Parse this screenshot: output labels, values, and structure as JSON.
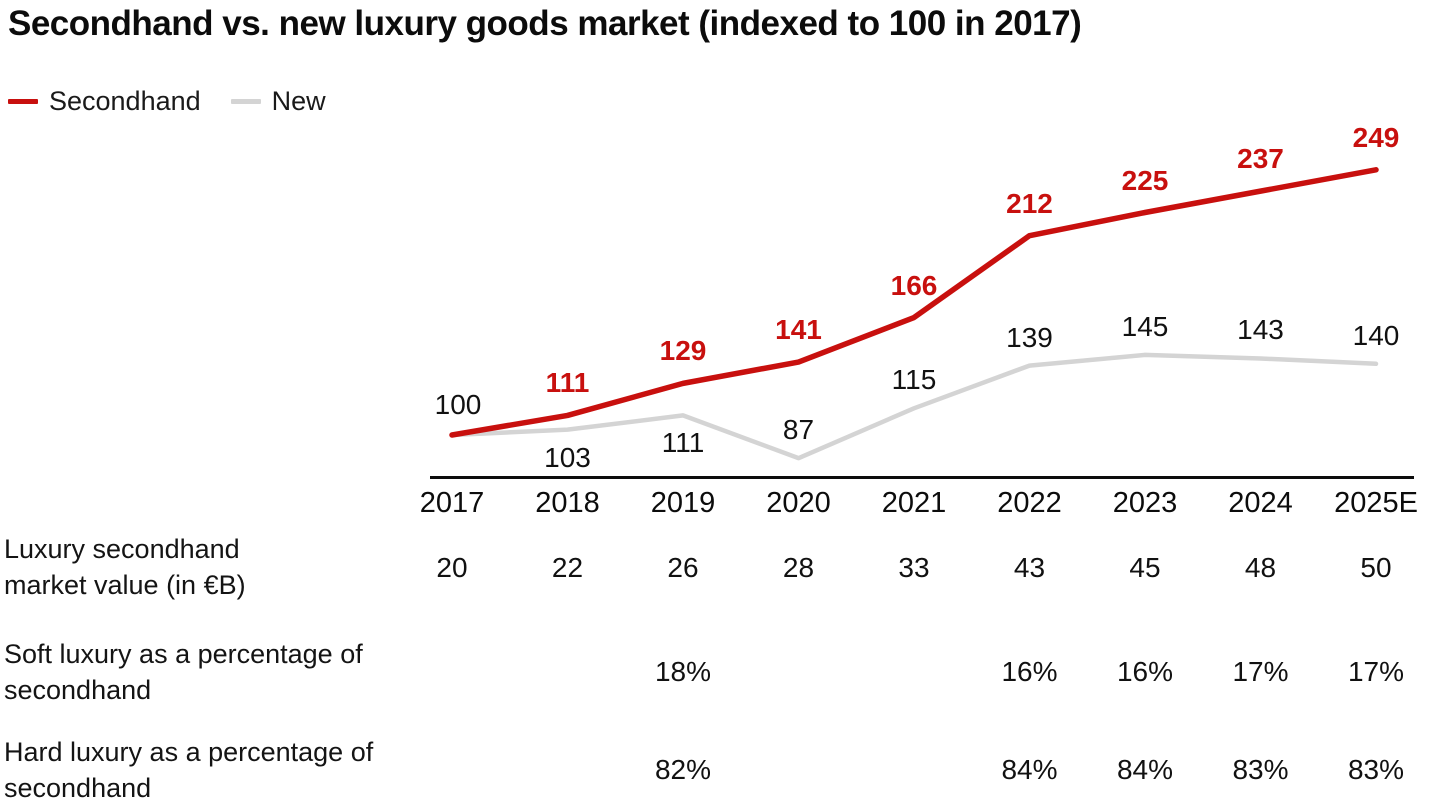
{
  "title": "Secondhand vs. new luxury goods market (indexed to 100 in 2017)",
  "legend": [
    {
      "label": "Secondhand",
      "color": "#c8100e"
    },
    {
      "label": "New",
      "color": "#d4d4d4"
    }
  ],
  "chart_data": {
    "type": "line",
    "title": "Secondhand vs. new luxury goods market (indexed to 100 in 2017)",
    "x": [
      "2017",
      "2018",
      "2019",
      "2020",
      "2021",
      "2022",
      "2023",
      "2024",
      "2025E"
    ],
    "series": [
      {
        "name": "Secondhand",
        "color": "#c8100e",
        "values": [
          100,
          111,
          129,
          141,
          166,
          212,
          225,
          237,
          249
        ]
      },
      {
        "name": "New",
        "color": "#d4d4d4",
        "values": [
          100,
          103,
          111,
          87,
          115,
          139,
          145,
          143,
          140
        ]
      }
    ],
    "xlabel": "",
    "ylabel": "",
    "ylim": [
      80,
      260
    ],
    "grid": false,
    "legend_position": "top-left",
    "index_base_note": "indexed to 100 in 2017"
  },
  "table": {
    "rows": [
      {
        "label": "Luxury secondhand market value (in €B)",
        "values": [
          "20",
          "22",
          "26",
          "28",
          "33",
          "43",
          "45",
          "48",
          "50"
        ]
      },
      {
        "label": "Soft luxury as a percentage of secondhand",
        "values": [
          "",
          "",
          "18%",
          "",
          "",
          "16%",
          "16%",
          "17%",
          "17%"
        ]
      },
      {
        "label": "Hard luxury as a percentage of secondhand",
        "values": [
          "",
          "",
          "82%",
          "",
          "",
          "84%",
          "84%",
          "83%",
          "83%"
        ]
      }
    ]
  }
}
